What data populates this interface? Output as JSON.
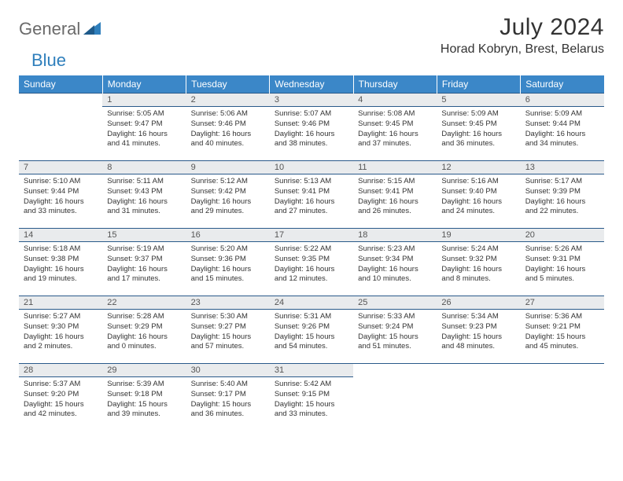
{
  "brand": {
    "word1": "General",
    "word2": "Blue"
  },
  "title": "July 2024",
  "location": "Horad Kobryn, Brest, Belarus",
  "colors": {
    "header_bg": "#3b87c8",
    "header_text": "#ffffff",
    "daynum_bg": "#e9ebed",
    "rule": "#2a5a8a",
    "body_text": "#333333",
    "logo_grey": "#6a6a6a",
    "logo_blue": "#2f7fbc"
  },
  "typography": {
    "title_fontsize": 30,
    "location_fontsize": 16,
    "weekday_fontsize": 12,
    "daynum_fontsize": 11,
    "cell_fontsize": 9.5
  },
  "weekdays": [
    "Sunday",
    "Monday",
    "Tuesday",
    "Wednesday",
    "Thursday",
    "Friday",
    "Saturday"
  ],
  "weeks": [
    [
      {
        "day": "",
        "sunrise": "",
        "sunset": "",
        "daylight": ""
      },
      {
        "day": "1",
        "sunrise": "Sunrise: 5:05 AM",
        "sunset": "Sunset: 9:47 PM",
        "daylight": "Daylight: 16 hours and 41 minutes."
      },
      {
        "day": "2",
        "sunrise": "Sunrise: 5:06 AM",
        "sunset": "Sunset: 9:46 PM",
        "daylight": "Daylight: 16 hours and 40 minutes."
      },
      {
        "day": "3",
        "sunrise": "Sunrise: 5:07 AM",
        "sunset": "Sunset: 9:46 PM",
        "daylight": "Daylight: 16 hours and 38 minutes."
      },
      {
        "day": "4",
        "sunrise": "Sunrise: 5:08 AM",
        "sunset": "Sunset: 9:45 PM",
        "daylight": "Daylight: 16 hours and 37 minutes."
      },
      {
        "day": "5",
        "sunrise": "Sunrise: 5:09 AM",
        "sunset": "Sunset: 9:45 PM",
        "daylight": "Daylight: 16 hours and 36 minutes."
      },
      {
        "day": "6",
        "sunrise": "Sunrise: 5:09 AM",
        "sunset": "Sunset: 9:44 PM",
        "daylight": "Daylight: 16 hours and 34 minutes."
      }
    ],
    [
      {
        "day": "7",
        "sunrise": "Sunrise: 5:10 AM",
        "sunset": "Sunset: 9:44 PM",
        "daylight": "Daylight: 16 hours and 33 minutes."
      },
      {
        "day": "8",
        "sunrise": "Sunrise: 5:11 AM",
        "sunset": "Sunset: 9:43 PM",
        "daylight": "Daylight: 16 hours and 31 minutes."
      },
      {
        "day": "9",
        "sunrise": "Sunrise: 5:12 AM",
        "sunset": "Sunset: 9:42 PM",
        "daylight": "Daylight: 16 hours and 29 minutes."
      },
      {
        "day": "10",
        "sunrise": "Sunrise: 5:13 AM",
        "sunset": "Sunset: 9:41 PM",
        "daylight": "Daylight: 16 hours and 27 minutes."
      },
      {
        "day": "11",
        "sunrise": "Sunrise: 5:15 AM",
        "sunset": "Sunset: 9:41 PM",
        "daylight": "Daylight: 16 hours and 26 minutes."
      },
      {
        "day": "12",
        "sunrise": "Sunrise: 5:16 AM",
        "sunset": "Sunset: 9:40 PM",
        "daylight": "Daylight: 16 hours and 24 minutes."
      },
      {
        "day": "13",
        "sunrise": "Sunrise: 5:17 AM",
        "sunset": "Sunset: 9:39 PM",
        "daylight": "Daylight: 16 hours and 22 minutes."
      }
    ],
    [
      {
        "day": "14",
        "sunrise": "Sunrise: 5:18 AM",
        "sunset": "Sunset: 9:38 PM",
        "daylight": "Daylight: 16 hours and 19 minutes."
      },
      {
        "day": "15",
        "sunrise": "Sunrise: 5:19 AM",
        "sunset": "Sunset: 9:37 PM",
        "daylight": "Daylight: 16 hours and 17 minutes."
      },
      {
        "day": "16",
        "sunrise": "Sunrise: 5:20 AM",
        "sunset": "Sunset: 9:36 PM",
        "daylight": "Daylight: 16 hours and 15 minutes."
      },
      {
        "day": "17",
        "sunrise": "Sunrise: 5:22 AM",
        "sunset": "Sunset: 9:35 PM",
        "daylight": "Daylight: 16 hours and 12 minutes."
      },
      {
        "day": "18",
        "sunrise": "Sunrise: 5:23 AM",
        "sunset": "Sunset: 9:34 PM",
        "daylight": "Daylight: 16 hours and 10 minutes."
      },
      {
        "day": "19",
        "sunrise": "Sunrise: 5:24 AM",
        "sunset": "Sunset: 9:32 PM",
        "daylight": "Daylight: 16 hours and 8 minutes."
      },
      {
        "day": "20",
        "sunrise": "Sunrise: 5:26 AM",
        "sunset": "Sunset: 9:31 PM",
        "daylight": "Daylight: 16 hours and 5 minutes."
      }
    ],
    [
      {
        "day": "21",
        "sunrise": "Sunrise: 5:27 AM",
        "sunset": "Sunset: 9:30 PM",
        "daylight": "Daylight: 16 hours and 2 minutes."
      },
      {
        "day": "22",
        "sunrise": "Sunrise: 5:28 AM",
        "sunset": "Sunset: 9:29 PM",
        "daylight": "Daylight: 16 hours and 0 minutes."
      },
      {
        "day": "23",
        "sunrise": "Sunrise: 5:30 AM",
        "sunset": "Sunset: 9:27 PM",
        "daylight": "Daylight: 15 hours and 57 minutes."
      },
      {
        "day": "24",
        "sunrise": "Sunrise: 5:31 AM",
        "sunset": "Sunset: 9:26 PM",
        "daylight": "Daylight: 15 hours and 54 minutes."
      },
      {
        "day": "25",
        "sunrise": "Sunrise: 5:33 AM",
        "sunset": "Sunset: 9:24 PM",
        "daylight": "Daylight: 15 hours and 51 minutes."
      },
      {
        "day": "26",
        "sunrise": "Sunrise: 5:34 AM",
        "sunset": "Sunset: 9:23 PM",
        "daylight": "Daylight: 15 hours and 48 minutes."
      },
      {
        "day": "27",
        "sunrise": "Sunrise: 5:36 AM",
        "sunset": "Sunset: 9:21 PM",
        "daylight": "Daylight: 15 hours and 45 minutes."
      }
    ],
    [
      {
        "day": "28",
        "sunrise": "Sunrise: 5:37 AM",
        "sunset": "Sunset: 9:20 PM",
        "daylight": "Daylight: 15 hours and 42 minutes."
      },
      {
        "day": "29",
        "sunrise": "Sunrise: 5:39 AM",
        "sunset": "Sunset: 9:18 PM",
        "daylight": "Daylight: 15 hours and 39 minutes."
      },
      {
        "day": "30",
        "sunrise": "Sunrise: 5:40 AM",
        "sunset": "Sunset: 9:17 PM",
        "daylight": "Daylight: 15 hours and 36 minutes."
      },
      {
        "day": "31",
        "sunrise": "Sunrise: 5:42 AM",
        "sunset": "Sunset: 9:15 PM",
        "daylight": "Daylight: 15 hours and 33 minutes."
      },
      {
        "day": "",
        "sunrise": "",
        "sunset": "",
        "daylight": ""
      },
      {
        "day": "",
        "sunrise": "",
        "sunset": "",
        "daylight": ""
      },
      {
        "day": "",
        "sunrise": "",
        "sunset": "",
        "daylight": ""
      }
    ]
  ]
}
